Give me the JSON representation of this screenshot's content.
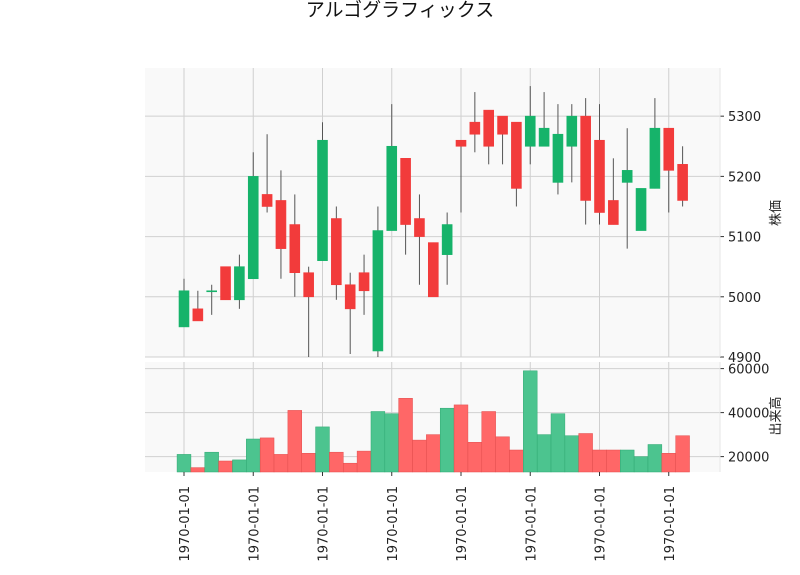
{
  "chart_data": {
    "type": "candlestick",
    "title": "アルゴグラフィックス",
    "x_tick_labels": [
      "1970-01-01",
      "1970-01-01",
      "1970-01-01",
      "1970-01-01",
      "1970-01-01",
      "1970-01-01",
      "1970-01-01",
      "1970-01-01"
    ],
    "x_tick_indices": [
      0,
      5,
      10,
      15,
      20,
      25,
      30,
      35
    ],
    "colors": {
      "up": "#16b36a",
      "down": "#f23b3b",
      "up_volume": "#4cc48f",
      "down_volume": "#ff6767",
      "wick": "#555555",
      "panel_bg": "#f9f9f9"
    },
    "price_panel": {
      "ylabel": "株価",
      "ylim": [
        4900,
        5380
      ],
      "yticks": [
        4900,
        5000,
        5100,
        5200,
        5300
      ],
      "candles": [
        {
          "open": 4950,
          "high": 5030,
          "low": 4950,
          "close": 5010
        },
        {
          "open": 4980,
          "high": 5010,
          "low": 4960,
          "close": 4960
        },
        {
          "open": 5010,
          "high": 5020,
          "low": 4970,
          "close": 5010
        },
        {
          "open": 5050,
          "high": 5050,
          "low": 4995,
          "close": 4995
        },
        {
          "open": 4995,
          "high": 5070,
          "low": 4980,
          "close": 5050
        },
        {
          "open": 5030,
          "high": 5240,
          "low": 5030,
          "close": 5200
        },
        {
          "open": 5170,
          "high": 5270,
          "low": 5140,
          "close": 5150
        },
        {
          "open": 5160,
          "high": 5210,
          "low": 5030,
          "close": 5080
        },
        {
          "open": 5120,
          "high": 5170,
          "low": 5000,
          "close": 5040
        },
        {
          "open": 5040,
          "high": 5050,
          "low": 4900,
          "close": 5000
        },
        {
          "open": 5060,
          "high": 5290,
          "low": 5060,
          "close": 5260
        },
        {
          "open": 5130,
          "high": 5150,
          "low": 4995,
          "close": 5020
        },
        {
          "open": 5020,
          "high": 5040,
          "low": 4905,
          "close": 4980
        },
        {
          "open": 5040,
          "high": 5070,
          "low": 4970,
          "close": 5010
        },
        {
          "open": 4910,
          "high": 5150,
          "low": 4900,
          "close": 5110
        },
        {
          "open": 5110,
          "high": 5320,
          "low": 5110,
          "close": 5250
        },
        {
          "open": 5230,
          "high": 5230,
          "low": 5070,
          "close": 5120
        },
        {
          "open": 5130,
          "high": 5170,
          "low": 5020,
          "close": 5100
        },
        {
          "open": 5090,
          "high": 5090,
          "low": 5000,
          "close": 5000
        },
        {
          "open": 5070,
          "high": 5140,
          "low": 5020,
          "close": 5120
        },
        {
          "open": 5260,
          "high": 5260,
          "low": 5140,
          "close": 5250
        },
        {
          "open": 5290,
          "high": 5340,
          "low": 5240,
          "close": 5270
        },
        {
          "open": 5310,
          "high": 5310,
          "low": 5220,
          "close": 5250
        },
        {
          "open": 5300,
          "high": 5300,
          "low": 5220,
          "close": 5270
        },
        {
          "open": 5290,
          "high": 5290,
          "low": 5150,
          "close": 5180
        },
        {
          "open": 5250,
          "high": 5350,
          "low": 5220,
          "close": 5300
        },
        {
          "open": 5250,
          "high": 5340,
          "low": 5250,
          "close": 5280
        },
        {
          "open": 5190,
          "high": 5320,
          "low": 5170,
          "close": 5270
        },
        {
          "open": 5250,
          "high": 5320,
          "low": 5190,
          "close": 5300
        },
        {
          "open": 5300,
          "high": 5330,
          "low": 5120,
          "close": 5160
        },
        {
          "open": 5260,
          "high": 5320,
          "low": 5120,
          "close": 5140
        },
        {
          "open": 5160,
          "high": 5230,
          "low": 5120,
          "close": 5120
        },
        {
          "open": 5190,
          "high": 5280,
          "low": 5080,
          "close": 5210
        },
        {
          "open": 5110,
          "high": 5180,
          "low": 5110,
          "close": 5180
        },
        {
          "open": 5180,
          "high": 5330,
          "low": 5180,
          "close": 5280
        },
        {
          "open": 5280,
          "high": 5280,
          "low": 5140,
          "close": 5210
        },
        {
          "open": 5220,
          "high": 5250,
          "low": 5150,
          "close": 5160
        }
      ]
    },
    "volume_panel": {
      "ylabel": "出来高",
      "ylim": [
        13000,
        63000
      ],
      "yticks": [
        20000,
        40000,
        60000
      ],
      "volumes": [
        21000,
        15000,
        22000,
        18000,
        18500,
        28000,
        28500,
        21000,
        41000,
        21500,
        33500,
        22000,
        17000,
        22500,
        40500,
        39500,
        46500,
        27500,
        30000,
        42000,
        43500,
        26500,
        40500,
        29000,
        23000,
        59000,
        30000,
        39500,
        29500,
        30500,
        23000,
        23000,
        23000,
        20000,
        25500,
        21500,
        29500
      ]
    }
  }
}
